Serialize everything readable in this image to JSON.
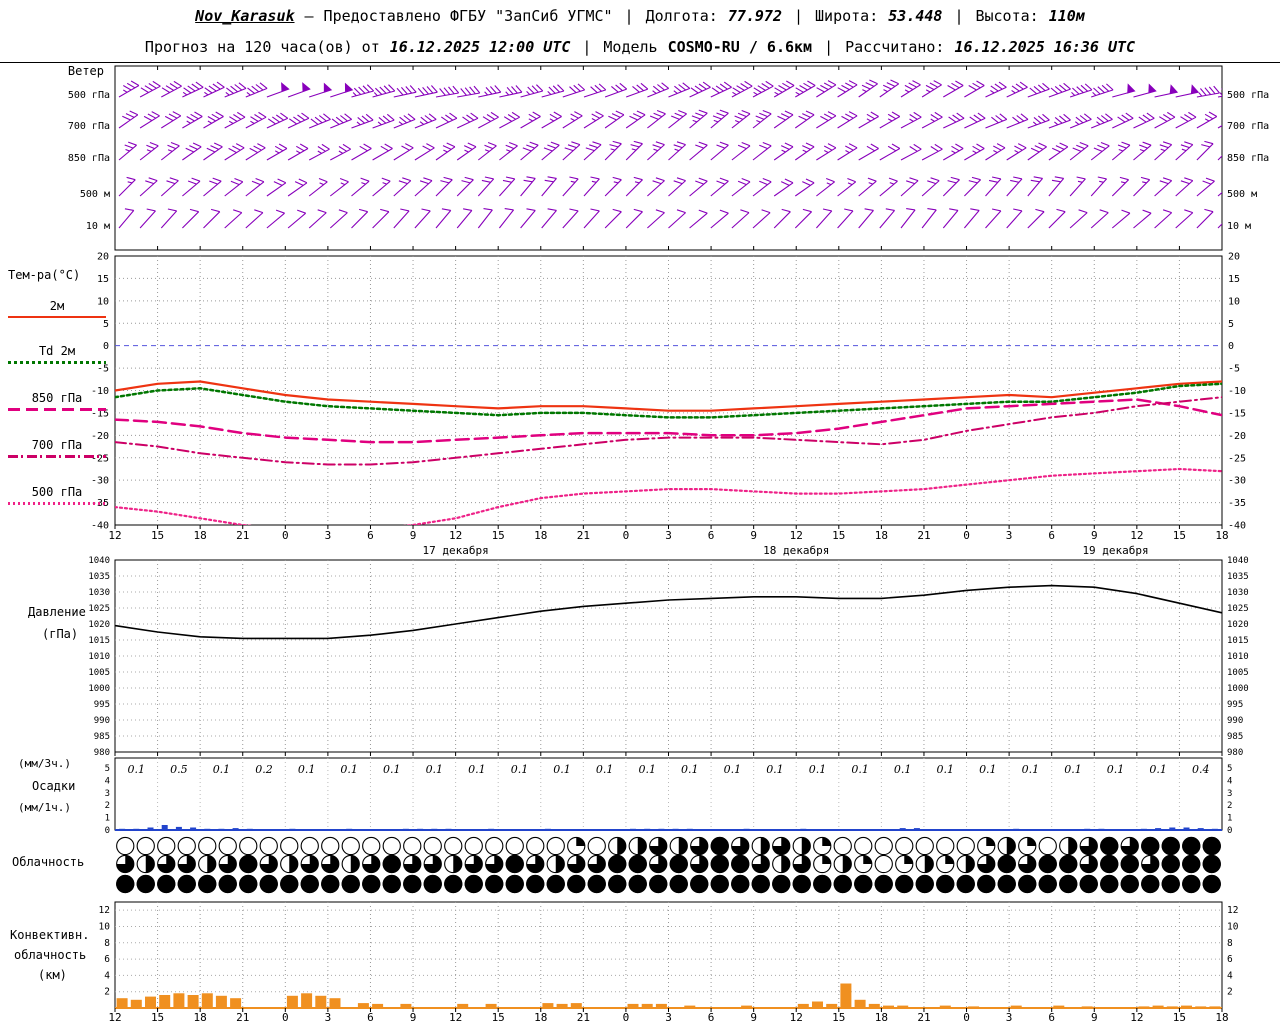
{
  "header": {
    "sep": "|",
    "line1": {
      "station": "Nov_Karasuk",
      "dash": "—",
      "provided": "Предоставлено ФГБУ \"ЗапСиб УГМС\"",
      "lon_label": "Долгота:",
      "lon": "77.972",
      "lat_label": "Широта:",
      "lat": "53.448",
      "alt_label": "Высота:",
      "alt": "110м"
    },
    "line2": {
      "forecast_label": "Прогноз на 120 часа(ов) от",
      "init_time": "16.12.2025 12:00 UTC",
      "model_label": "Модель",
      "model": "COSMO-RU / 6.6км",
      "calc_label": "Рассчитано:",
      "calc_time": "16.12.2025 16:36 UTC"
    }
  },
  "panel_labels": {
    "wind": "Ветер",
    "temp_title": "Тем-ра(°C)",
    "pressure_1": "Давление",
    "pressure_2": "(гПа)",
    "precip_top": "(мм/3ч.)",
    "precip_mid": "Осадки",
    "precip_bot": "(мм/1ч.)",
    "clouds": "Облачность",
    "conv_1": "Конвективн.",
    "conv_2": "облачность",
    "conv_3": "(км)"
  },
  "wind_levels": [
    "500 гПа",
    "700 гПа",
    "850 гПа",
    "500 м",
    "10 м"
  ],
  "x_axis": {
    "hour_labels": [
      "12",
      "15",
      "18",
      "21",
      "0",
      "3",
      "6",
      "9",
      "12",
      "15",
      "18",
      "21",
      "0",
      "3",
      "6",
      "9",
      "12",
      "15",
      "18",
      "21",
      "0",
      "3",
      "6",
      "9",
      "12",
      "15",
      "18"
    ],
    "date_labels": [
      {
        "label": "17 декабря",
        "center_tick": 8
      },
      {
        "label": "18 декабря",
        "center_tick": 16
      },
      {
        "label": "19 декабря",
        "center_tick": 23.5
      }
    ]
  },
  "chart_data": [
    {
      "id": "wind",
      "type": "wind-barbs",
      "color": "#8800bb",
      "levels": [
        {
          "name": "500 гПа",
          "dir": [
            60,
            62,
            65,
            68,
            70,
            72,
            75,
            78,
            80,
            78,
            75,
            72,
            70,
            68,
            65,
            62,
            60,
            58,
            55,
            58,
            60,
            65,
            70,
            72,
            75,
            78,
            80
          ],
          "speed_kt": [
            35,
            40,
            45,
            45,
            50,
            50,
            45,
            40,
            40,
            35,
            35,
            30,
            30,
            35,
            40,
            45,
            45,
            40,
            35,
            35,
            30,
            35,
            40,
            45,
            50,
            50,
            45
          ]
        },
        {
          "name": "700 гПа",
          "dir": [
            55,
            58,
            60,
            62,
            65,
            68,
            70,
            68,
            65,
            62,
            60,
            58,
            55,
            52,
            50,
            52,
            55,
            58,
            60,
            62,
            65,
            68,
            70,
            68,
            65,
            62,
            60
          ],
          "speed_kt": [
            30,
            30,
            35,
            35,
            40,
            40,
            35,
            35,
            30,
            30,
            25,
            25,
            30,
            30,
            35,
            35,
            30,
            30,
            25,
            25,
            30,
            30,
            35,
            35,
            30,
            30,
            25
          ]
        },
        {
          "name": "850 гПа",
          "dir": [
            50,
            52,
            55,
            58,
            60,
            62,
            60,
            58,
            55,
            52,
            50,
            48,
            45,
            48,
            50,
            52,
            55,
            58,
            60,
            62,
            60,
            58,
            55,
            52,
            50,
            48,
            45
          ],
          "speed_kt": [
            25,
            25,
            30,
            30,
            25,
            25,
            20,
            20,
            25,
            25,
            30,
            30,
            25,
            25,
            20,
            20,
            25,
            25,
            20,
            20,
            25,
            25,
            30,
            30,
            25,
            25,
            20
          ]
        },
        {
          "name": "500 м",
          "dir": [
            45,
            48,
            50,
            52,
            55,
            52,
            50,
            48,
            45,
            42,
            40,
            42,
            45,
            48,
            50,
            52,
            55,
            52,
            50,
            48,
            45,
            42,
            40,
            42,
            45,
            48,
            50
          ],
          "speed_kt": [
            15,
            18,
            20,
            20,
            18,
            15,
            15,
            18,
            20,
            20,
            18,
            15,
            15,
            18,
            20,
            20,
            18,
            15,
            15,
            18,
            20,
            20,
            18,
            15,
            15,
            18,
            20
          ]
        },
        {
          "name": "10 м",
          "dir": [
            40,
            42,
            45,
            48,
            50,
            48,
            45,
            42,
            40,
            38,
            40,
            42,
            45,
            48,
            50,
            48,
            45,
            42,
            40,
            38,
            40,
            42,
            45,
            48,
            50,
            48,
            45
          ],
          "speed_kt": [
            10,
            10,
            12,
            12,
            10,
            10,
            8,
            8,
            10,
            10,
            12,
            12,
            10,
            10,
            8,
            8,
            10,
            10,
            12,
            12,
            10,
            10,
            8,
            8,
            10,
            10,
            12
          ]
        }
      ]
    },
    {
      "id": "temperature",
      "type": "line",
      "title": "Тем-ра(°C)",
      "ylim": [
        -40,
        20
      ],
      "yticks": [
        20,
        15,
        10,
        5,
        0,
        -5,
        -10,
        -15,
        -20,
        -25,
        -30,
        -35,
        -40
      ],
      "zero_line_color": "#5555dd",
      "series": [
        {
          "name": "2м",
          "color": "#ee3311",
          "dash": "solid",
          "values": [
            -10,
            -8.5,
            -8,
            -9.5,
            -11,
            -12,
            -12.5,
            -13,
            -13.5,
            -14,
            -13.5,
            -13.5,
            -14,
            -14.5,
            -14.5,
            -14,
            -13.5,
            -13,
            -12.5,
            -12,
            -11.5,
            -11,
            -11.5,
            -10.5,
            -9.5,
            -8.5,
            -8
          ]
        },
        {
          "name": "Td 2м",
          "color": "#007700",
          "dash": "dotted",
          "values": [
            -11.5,
            -10,
            -9.5,
            -11,
            -12.5,
            -13.5,
            -14,
            -14.5,
            -15,
            -15.5,
            -15,
            -15,
            -15.5,
            -16,
            -16,
            -15.5,
            -15,
            -14.5,
            -14,
            -13.5,
            -13,
            -12.5,
            -12.5,
            -11.5,
            -10.5,
            -9,
            -8.5
          ]
        },
        {
          "name": "850 гПа",
          "color": "#e0007f",
          "dash": "longdash",
          "values": [
            -16.5,
            -17,
            -18,
            -19.5,
            -20.5,
            -21,
            -21.5,
            -21.5,
            -21,
            -20.5,
            -20,
            -19.5,
            -19.5,
            -19.5,
            -20,
            -20,
            -19.5,
            -18.5,
            -17,
            -15.5,
            -14,
            -13.5,
            -13,
            -12.5,
            -12,
            -13.5,
            -15.5
          ]
        },
        {
          "name": "700 гПа",
          "color": "#cc0066",
          "dash": "dashdot",
          "values": [
            -21.5,
            -22.5,
            -24,
            -25,
            -26,
            -26.5,
            -26.5,
            -26,
            -25,
            -24,
            -23,
            -22,
            -21,
            -20.5,
            -20.5,
            -20.5,
            -21,
            -21.5,
            -22,
            -21,
            -19,
            -17.5,
            -16,
            -15,
            -13.5,
            -12.5,
            -11.5
          ]
        },
        {
          "name": "500 гПа",
          "color": "#ee2288",
          "dash": "dot2",
          "values": [
            -36,
            -37,
            -38.5,
            -40,
            -41,
            -41.5,
            -41,
            -40,
            -38.5,
            -36,
            -34,
            -33,
            -32.5,
            -32,
            -32,
            -32.5,
            -33,
            -33,
            -32.5,
            -32,
            -31,
            -30,
            -29,
            -28.5,
            -28,
            -27.5,
            -28
          ]
        }
      ]
    },
    {
      "id": "pressure",
      "type": "line",
      "title": "Давление (гПа)",
      "color": "#000000",
      "ylim": [
        980,
        1040
      ],
      "yticks": [
        1040,
        1035,
        1030,
        1025,
        1020,
        1015,
        1010,
        1005,
        1000,
        995,
        990,
        985,
        980
      ],
      "values": [
        1019.5,
        1017.5,
        1016,
        1015.5,
        1015.5,
        1015.5,
        1016.5,
        1018,
        1020,
        1022,
        1024,
        1025.5,
        1026.5,
        1027.5,
        1028,
        1028.5,
        1028.5,
        1028,
        1028,
        1029,
        1030.5,
        1031.5,
        1032,
        1031.5,
        1029.5,
        1026.5,
        1023.5
      ]
    },
    {
      "id": "precipitation",
      "type": "bar",
      "title": "Осадки",
      "color": "#2244cc",
      "ylim": [
        0,
        5
      ],
      "yticks": [
        5,
        4,
        3,
        2,
        1,
        0
      ],
      "labels_3h": [
        "0.1",
        "0.5",
        "0.1",
        "0.2",
        "0.1",
        "0.1",
        "0.1",
        "0.1",
        "0.1",
        "0.1",
        "0.1",
        "0.1",
        "0.1",
        "0.1",
        "0.1",
        "0.1",
        "0.1",
        "0.1",
        "0.1",
        "0.1",
        "0.1",
        "0.1",
        "0.1",
        "0.1",
        "0.1",
        "0.4"
      ],
      "hourly_mm": [
        0.1,
        0.1,
        0.2,
        0.4,
        0.25,
        0.2,
        0.1,
        0.1,
        0.15,
        0.1,
        0,
        0,
        0.1,
        0,
        0,
        0,
        0.1,
        0,
        0,
        0,
        0.1,
        0.1,
        0.1,
        0.1,
        0,
        0,
        0.1,
        0,
        0,
        0,
        0.1,
        0,
        0,
        0,
        0,
        0,
        0.1,
        0.1,
        0.1,
        0.1,
        0.1,
        0,
        0,
        0,
        0.1,
        0,
        0,
        0,
        0.1,
        0,
        0,
        0,
        0,
        0,
        0,
        0.15,
        0.15,
        0,
        0,
        0,
        0,
        0,
        0,
        0.1,
        0,
        0,
        0,
        0,
        0.1,
        0.1,
        0,
        0,
        0.1,
        0.15,
        0.2,
        0.2,
        0.15,
        0.1
      ]
    },
    {
      "id": "cloud_cover",
      "type": "heatmap",
      "title": "Облачность",
      "rows": [
        [
          0,
          0,
          0,
          0,
          0,
          0,
          0,
          0,
          0,
          0,
          0,
          0,
          0,
          0,
          0,
          0,
          0,
          0,
          0,
          0,
          0,
          0,
          0.25,
          0,
          0.5,
          0.5,
          0.75,
          0.5,
          0.75,
          1,
          0.75,
          0.5,
          0.75,
          0.5,
          0.25,
          0,
          0,
          0,
          0,
          0,
          0,
          0,
          0.25,
          0.5,
          0.25,
          0,
          0.5,
          0.75,
          1,
          0.75,
          1,
          1,
          1,
          1
        ],
        [
          0.75,
          0.5,
          0.75,
          0.75,
          0.5,
          0.75,
          1,
          0.75,
          0.5,
          0.75,
          0.75,
          0.5,
          0.75,
          1,
          0.75,
          0.75,
          0.5,
          0.75,
          0.75,
          1,
          0.75,
          0.5,
          0.75,
          0.75,
          1,
          1,
          0.75,
          1,
          0.75,
          1,
          1,
          0.75,
          0.5,
          0.75,
          0.25,
          0.5,
          0.25,
          0,
          0.25,
          0.5,
          0.25,
          0.5,
          0.75,
          1,
          0.75,
          1,
          1,
          0.75,
          1,
          1,
          0.75,
          1,
          1,
          1
        ],
        [
          1,
          1,
          1,
          1,
          1,
          1,
          1,
          1,
          1,
          1,
          1,
          1,
          1,
          1,
          1,
          1,
          1,
          1,
          1,
          1,
          1,
          1,
          1,
          1,
          1,
          1,
          1,
          1,
          1,
          1,
          1,
          1,
          1,
          1,
          1,
          1,
          1,
          1,
          1,
          1,
          1,
          1,
          1,
          1,
          1,
          1,
          1,
          1,
          1,
          1,
          1,
          1,
          1,
          1
        ]
      ]
    },
    {
      "id": "convective_clouds",
      "type": "bar",
      "title": "Конвективная облачность (км)",
      "color": "#f09020",
      "ylim": [
        0,
        13
      ],
      "yticks": [
        12,
        10,
        8,
        6,
        4,
        2
      ],
      "hourly_km": [
        1.2,
        1.0,
        1.4,
        1.6,
        1.8,
        1.6,
        1.8,
        1.5,
        1.2,
        0,
        0,
        0,
        1.5,
        1.8,
        1.5,
        1.2,
        0,
        0.6,
        0.5,
        0,
        0.5,
        0,
        0,
        0,
        0.5,
        0,
        0.5,
        0,
        0,
        0,
        0.6,
        0.5,
        0.6,
        0,
        0,
        0,
        0.5,
        0.5,
        0.5,
        0,
        0.3,
        0,
        0,
        0,
        0.3,
        0,
        0,
        0,
        0.5,
        0.8,
        0.5,
        3.0,
        1.0,
        0.5,
        0.3,
        0.3,
        0,
        0,
        0.3,
        0,
        0.2,
        0,
        0,
        0.3,
        0,
        0,
        0.3,
        0,
        0.2,
        0,
        0,
        0,
        0.2,
        0.3,
        0.2,
        0.3,
        0.2,
        0.2
      ]
    }
  ]
}
